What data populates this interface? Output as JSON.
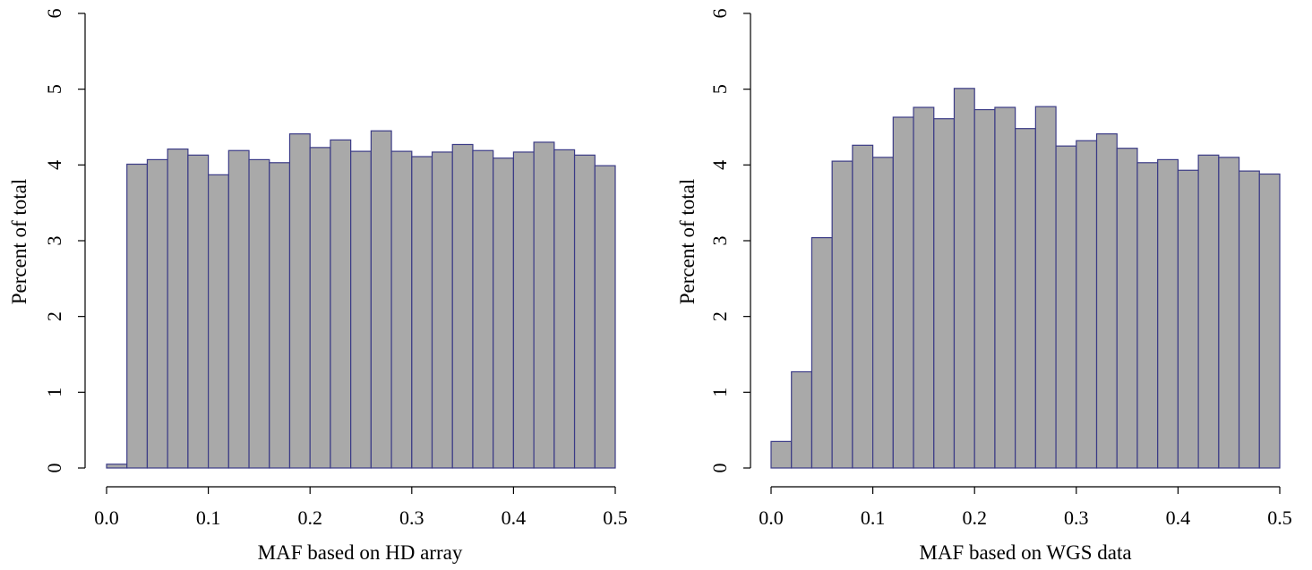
{
  "chart_data": [
    {
      "type": "bar",
      "title": "",
      "xlabel": "MAF based on HD array",
      "ylabel": "Percent of total",
      "xlim": [
        0,
        0.5
      ],
      "ylim": [
        0,
        6
      ],
      "xticks": [
        "0.0",
        "0.1",
        "0.2",
        "0.3",
        "0.4",
        "0.5"
      ],
      "yticks": [
        "0",
        "1",
        "2",
        "3",
        "4",
        "5",
        "6"
      ],
      "bin_width": 0.02,
      "bin_starts": [
        0.0,
        0.02,
        0.04,
        0.06,
        0.08,
        0.1,
        0.12,
        0.14,
        0.16,
        0.18,
        0.2,
        0.22,
        0.24,
        0.26,
        0.28,
        0.3,
        0.32,
        0.34,
        0.36,
        0.38,
        0.4,
        0.42,
        0.44,
        0.46,
        0.48
      ],
      "values": [
        0.05,
        4.01,
        4.07,
        4.21,
        4.13,
        3.87,
        4.19,
        4.07,
        4.03,
        4.41,
        4.23,
        4.33,
        4.18,
        4.45,
        4.18,
        4.11,
        4.17,
        4.27,
        4.19,
        4.09,
        4.17,
        4.3,
        4.2,
        4.13,
        3.99
      ],
      "bar_fill": "#a9a9a9",
      "bar_edge": "#3b3b86",
      "grid": false,
      "legend": "none"
    },
    {
      "type": "bar",
      "title": "",
      "xlabel": "MAF based on WGS data",
      "ylabel": "Percent of total",
      "xlim": [
        0,
        0.5
      ],
      "ylim": [
        0,
        6
      ],
      "xticks": [
        "0.0",
        "0.1",
        "0.2",
        "0.3",
        "0.4",
        "0.5"
      ],
      "yticks": [
        "0",
        "1",
        "2",
        "3",
        "4",
        "5",
        "6"
      ],
      "bin_width": 0.02,
      "bin_starts": [
        0.0,
        0.02,
        0.04,
        0.06,
        0.08,
        0.1,
        0.12,
        0.14,
        0.16,
        0.18,
        0.2,
        0.22,
        0.24,
        0.26,
        0.28,
        0.3,
        0.32,
        0.34,
        0.36,
        0.38,
        0.4,
        0.42,
        0.44,
        0.46,
        0.48
      ],
      "values": [
        0.35,
        1.27,
        3.04,
        4.05,
        4.26,
        4.1,
        4.63,
        4.76,
        4.61,
        5.01,
        4.73,
        4.76,
        4.48,
        4.77,
        4.25,
        4.32,
        4.41,
        4.22,
        4.03,
        4.07,
        3.93,
        4.13,
        4.1,
        3.92,
        3.88
      ],
      "bar_fill": "#a9a9a9",
      "bar_edge": "#3b3b86",
      "grid": false,
      "legend": "none"
    }
  ]
}
